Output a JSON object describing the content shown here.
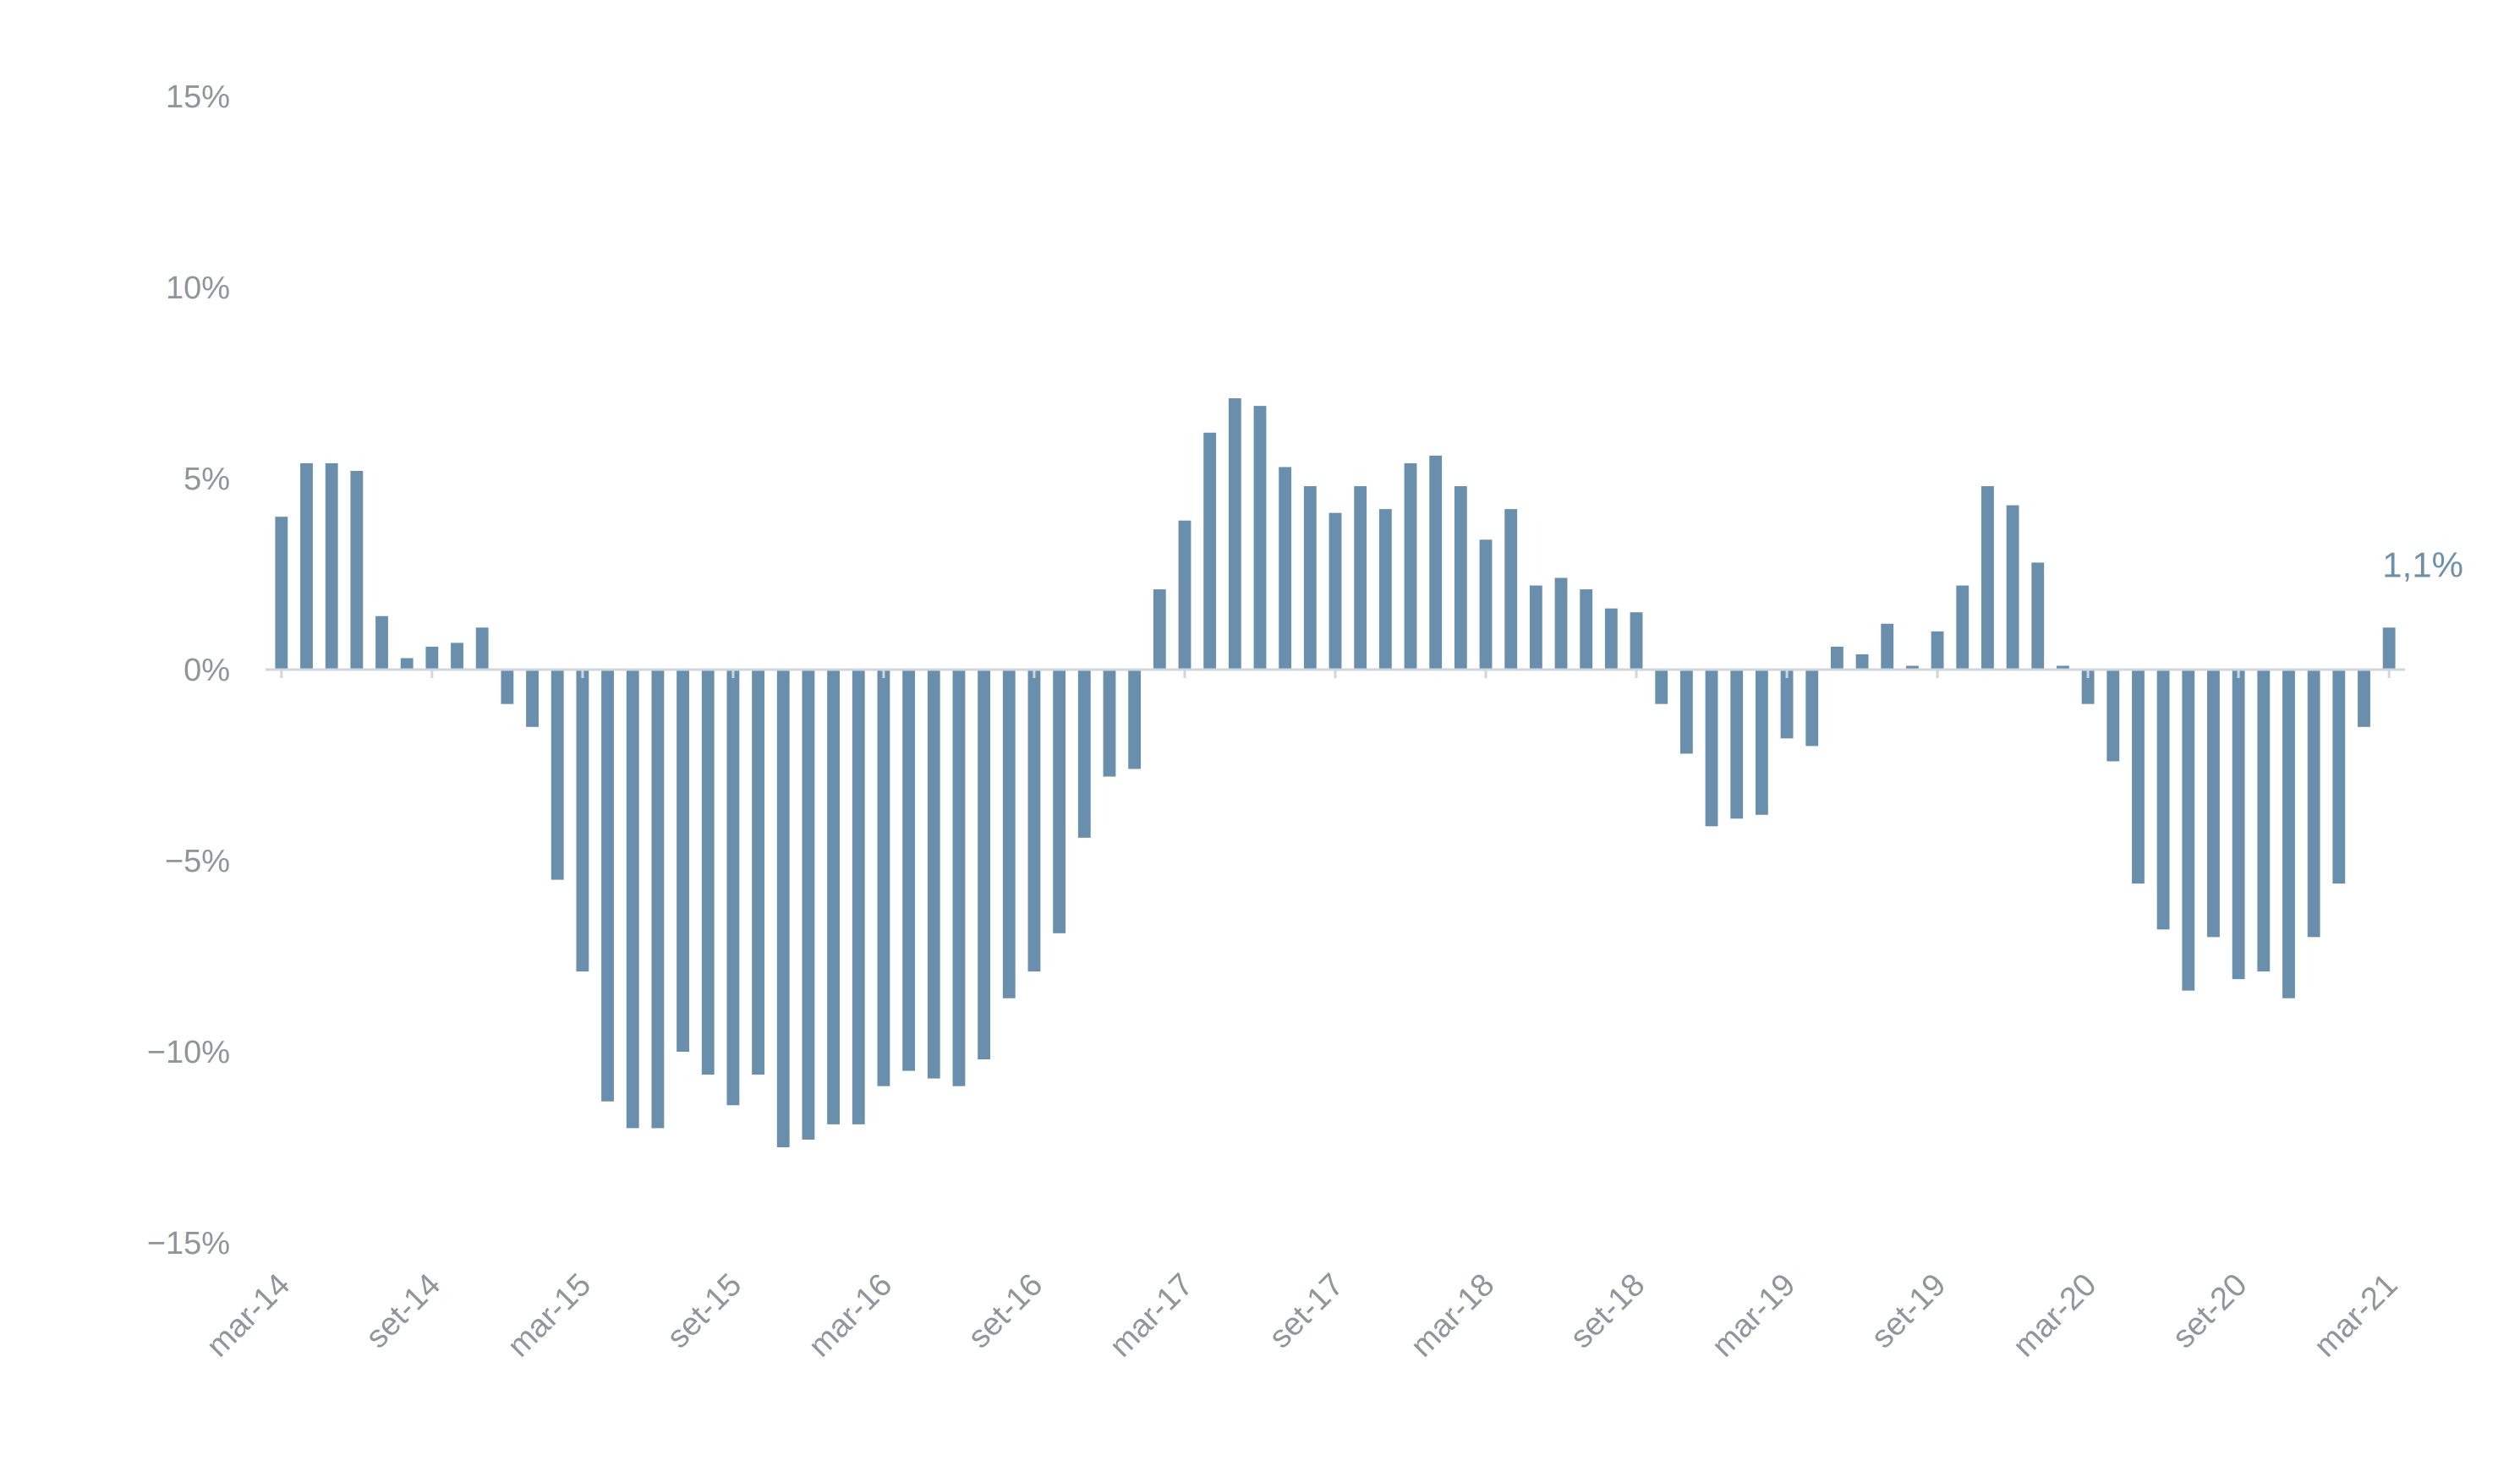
{
  "chart_data": {
    "type": "bar",
    "title": "",
    "xlabel": "",
    "ylabel": "",
    "ylim": [
      -15,
      15
    ],
    "yticks": [
      15,
      10,
      5,
      0,
      -5,
      -10,
      -15
    ],
    "ytick_labels": [
      "15%",
      "10%",
      "5%",
      "0%",
      "−5%",
      "−10%",
      "−15%"
    ],
    "xtick_labels": [
      "mar-14",
      "set-14",
      "mar-15",
      "set-15",
      "mar-16",
      "set-16",
      "mar-17",
      "set-17",
      "mar-18",
      "set-18",
      "mar-19",
      "set-19",
      "mar-20",
      "set-20",
      "mar-21"
    ],
    "x_start": "2014-03",
    "grid": false,
    "legend": "none",
    "bar_color": "#6a8fad",
    "annotation": {
      "text": "1,1%",
      "target": "last"
    },
    "series": [
      {
        "values": [
          4.0,
          5.4,
          5.4,
          5.2,
          1.4,
          0.3,
          0.6,
          0.7,
          1.1,
          -0.9,
          -1.5,
          -5.5,
          -7.9,
          -11.3,
          -12.0,
          -12.0,
          -10.0,
          -10.6,
          -11.4,
          -10.6,
          -12.5,
          -12.3,
          -11.9,
          -11.9,
          -10.9,
          -10.5,
          -10.7,
          -10.9,
          -10.2,
          -8.6,
          -7.9,
          -6.9,
          -4.4,
          -2.8,
          -2.6,
          2.1,
          3.9,
          6.2,
          7.1,
          6.9,
          5.3,
          4.8,
          4.1,
          4.8,
          4.2,
          5.4,
          5.6,
          4.8,
          3.4,
          4.2,
          2.2,
          2.4,
          2.1,
          1.6,
          1.5,
          -0.9,
          -2.2,
          -4.1,
          -3.9,
          -3.8,
          -1.8,
          -2.0,
          0.6,
          0.4,
          1.2,
          0.1,
          1.0,
          2.2,
          4.8,
          4.3,
          2.8,
          0.1,
          -0.9,
          -2.4,
          -5.6,
          -6.8,
          -8.4,
          -7.0,
          -8.1,
          -7.9,
          -8.6,
          -7.0,
          -5.6,
          -1.5,
          1.1
        ]
      }
    ]
  }
}
